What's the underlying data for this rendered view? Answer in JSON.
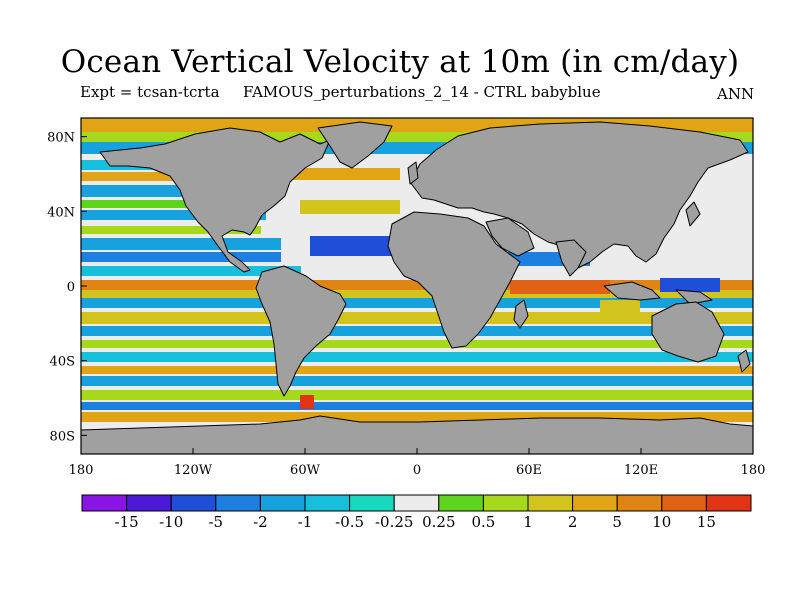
{
  "title": "Ocean Vertical Velocity at 10m (in cm/day)",
  "subtitle_left": "Expt = tcsan-tcrta",
  "subtitle_center": "FAMOUS_perturbations_2_14 - CTRL babyblue",
  "subtitle_right": "ANN",
  "map": {
    "projection": "cylindrical-equidistant",
    "lon_range": [
      -180,
      180
    ],
    "lat_range": [
      -90,
      90
    ],
    "land_color": "#a0a0a0",
    "coastline_color": "#000000"
  },
  "lat_ticks": [
    {
      "value": 80,
      "label": "80N"
    },
    {
      "value": 40,
      "label": "40N"
    },
    {
      "value": 0,
      "label": "0"
    },
    {
      "value": -40,
      "label": "40S"
    },
    {
      "value": -80,
      "label": "80S"
    }
  ],
  "lon_ticks": [
    {
      "value": -180,
      "label": "180"
    },
    {
      "value": -120,
      "label": "120W"
    },
    {
      "value": -60,
      "label": "60W"
    },
    {
      "value": 0,
      "label": "0"
    },
    {
      "value": 60,
      "label": "60E"
    },
    {
      "value": 120,
      "label": "120E"
    },
    {
      "value": 180,
      "label": "180"
    }
  ],
  "colorbar": {
    "colors": [
      "#8a14e6",
      "#4b1ad6",
      "#1f4fd8",
      "#1d7fe0",
      "#18a2dd",
      "#16c0dc",
      "#18d8c0",
      "#ececec",
      "#5fd41c",
      "#a6d81c",
      "#d2c41c",
      "#e0a414",
      "#e08414",
      "#e06014",
      "#e03414"
    ],
    "labels": [
      "-15",
      "-10",
      "-5",
      "-2",
      "-1",
      "-0.5",
      "-0.25",
      "0.25",
      "0.5",
      "1",
      "2",
      "5",
      "10",
      "15"
    ]
  }
}
